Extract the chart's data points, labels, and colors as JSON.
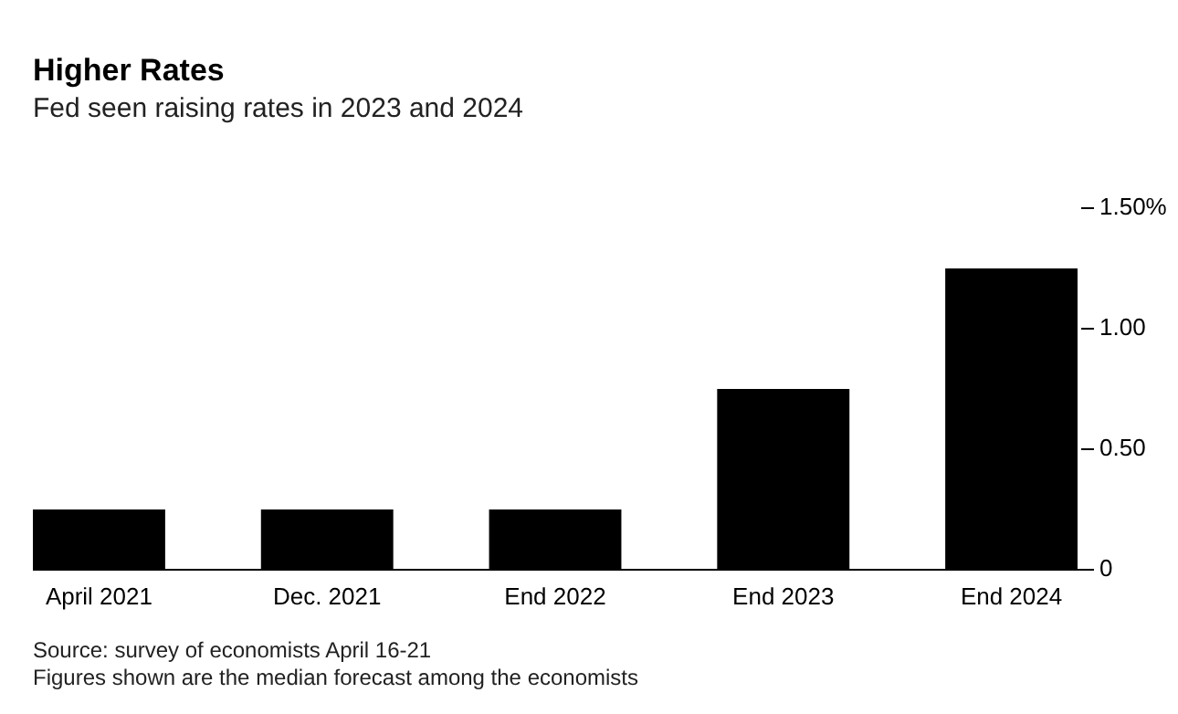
{
  "chart_data": {
    "type": "bar",
    "title": "Higher Rates",
    "subtitle": "Fed seen raising rates in 2023 and 2024",
    "categories": [
      "April 2021",
      "Dec. 2021",
      "End 2022",
      "End 2023",
      "End 2024"
    ],
    "values": [
      0.25,
      0.25,
      0.25,
      0.75,
      1.25
    ],
    "color": "#000000",
    "ylim": [
      0,
      1.5
    ],
    "yticks": [
      0,
      {
        "value": 0.5,
        "label": "0.50"
      },
      {
        "value": 1,
        "label": "1.00"
      },
      {
        "value": 1.5,
        "label": "1.50%"
      }
    ],
    "grid": false,
    "annotations": [
      "Source: survey of economists April 16-21",
      "Figures shown are the median forecast among the economists"
    ]
  }
}
